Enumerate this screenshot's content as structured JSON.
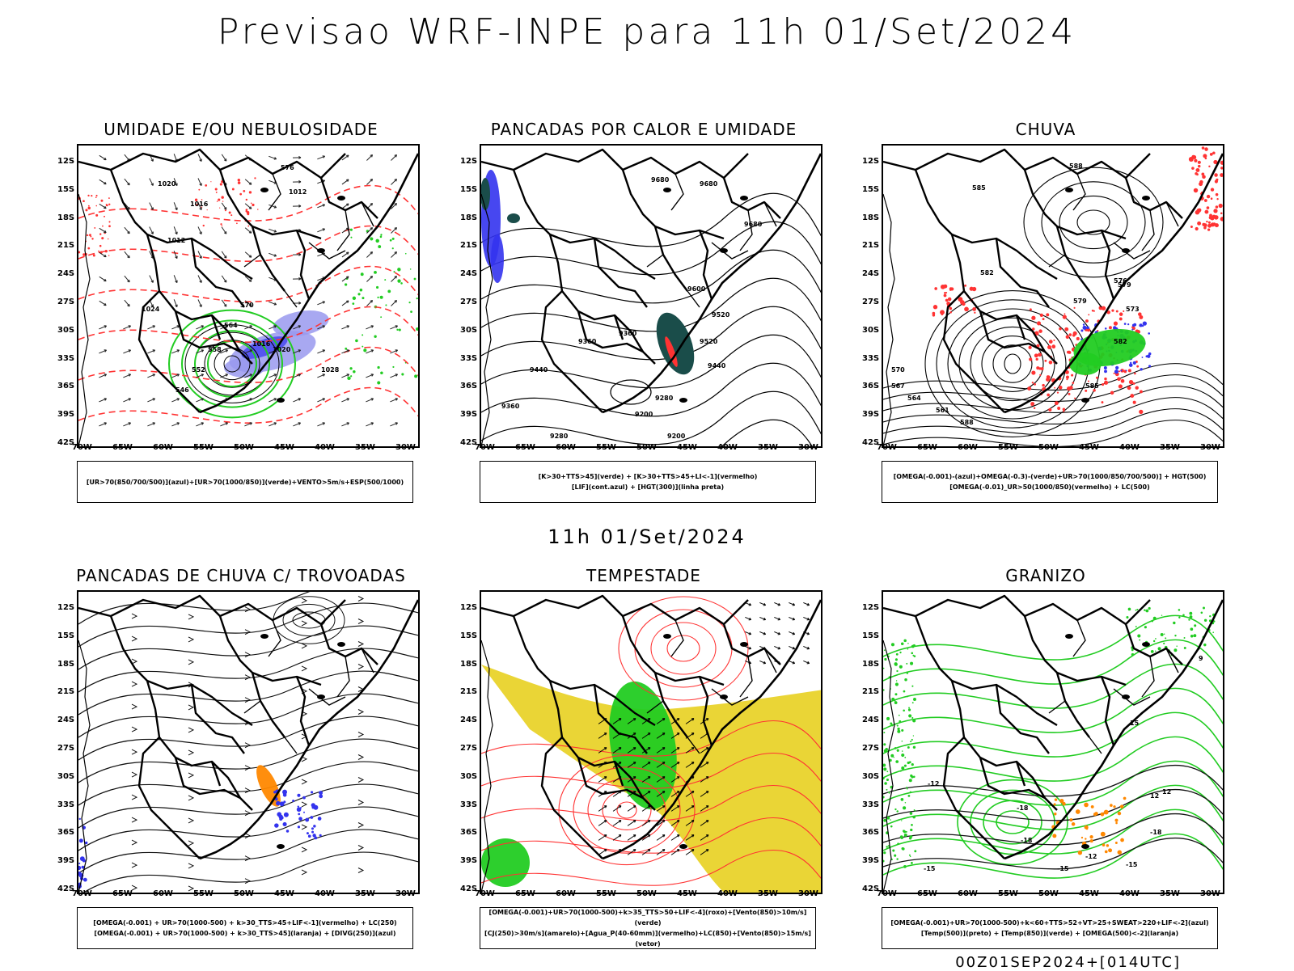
{
  "header": {
    "title": "Previsao WRF-INPE  para 11h 01/Set/2024",
    "mid_time": "11h 01/Set/2024",
    "footer_run": "00Z01SEP2024+[014UTC]"
  },
  "axes": {
    "lat_ticks": [
      "12S",
      "15S",
      "18S",
      "21S",
      "24S",
      "27S",
      "30S",
      "33S",
      "36S",
      "39S",
      "42S"
    ],
    "lon_ticks": [
      "70W",
      "65W",
      "60W",
      "55W",
      "50W",
      "45W",
      "40W",
      "35W",
      "30W"
    ]
  },
  "panels": [
    {
      "id": "umidade",
      "title": "UMIDADE E/OU NEBULOSIDADE",
      "legend": [
        "[UR>70(850/700/500)](azul)+[UR>70(1000/850)](verde)+VENTO>5m/s+ESP(500/1000)"
      ],
      "contour_labels": [
        "1020",
        "1016",
        "1012",
        "1024",
        "1028",
        "1020",
        "1016",
        "1012",
        "576",
        "570",
        "564",
        "558",
        "552",
        "546"
      ]
    },
    {
      "id": "pancadas-calor",
      "title": "PANCADAS POR CALOR E UMIDADE",
      "legend": [
        "[K>30+TTS>45](verde) + [K>30+TTS>45+LI<-1](vermelho)",
        "[LIF](cont.azul) + [HGT(300)](linha preta)"
      ],
      "contour_labels": [
        "9680",
        "9680",
        "9680",
        "9600",
        "9520",
        "9520",
        "9440",
        "9440",
        "9360",
        "9360",
        "9280",
        "9200",
        "9200",
        "9280",
        "9360"
      ]
    },
    {
      "id": "chuva",
      "title": "CHUVA",
      "legend": [
        "[OMEGA(-0.001)-(azul)+OMEGA(-0.3)-(verde)+UR>70(1000/850/700/500)] + HGT(500)",
        "[OMEGA(-0.01)_UR>50(1000/850)(vermelho) + LC(500)"
      ],
      "contour_labels": [
        "588",
        "585",
        "582",
        "579",
        "576",
        "573",
        "570",
        "567",
        "564",
        "561",
        "588",
        "585",
        "582",
        "579"
      ]
    },
    {
      "id": "trovoadas",
      "title": "PANCADAS DE CHUVA C/ TROVOADAS",
      "legend": [
        "[OMEGA(-0.001) + UR>70(1000-500) + k>30_TTS>45+LIF<-1](vermelho) + LC(250)",
        "[OMEGA(-0.001) + UR>70(1000-500) + k>30_TTS>45](laranja) + [DIVG(250)](azul)"
      ],
      "contour_labels": []
    },
    {
      "id": "tempestade",
      "title": "TEMPESTADE",
      "legend": [
        "[OMEGA(-0.001)+UR>70(1000-500)+k>35_TTS>50+LIF<-4](roxo)+[Vento(850)>10m/s](verde)",
        "[CJ(250)>30m/s](amarelo)+[Agua_P(40-60mm)](vermelho)+LC(850)+[Vento(850)>15m/s](vetor)"
      ],
      "contour_labels": []
    },
    {
      "id": "granizo",
      "title": "GRANIZO",
      "legend": [
        "[OMEGA(-0.001)+UR>70(1000-500)+k<60+TTS>52+VT>25+SWEAT>220+LIF<-2](azul)",
        "[Temp(500)](preto) + [Temp(850)](verde) + [OMEGA(500)<-2](laranja)"
      ],
      "contour_labels": [
        "-12",
        "-15",
        "-18",
        "-18",
        "-15",
        "-12",
        "-15",
        "-18",
        "12",
        "9",
        "15",
        "12"
      ]
    }
  ],
  "colors": {
    "blue": "#3333ee",
    "green": "#22cc22",
    "red": "#ff3333",
    "orange": "#ff8800",
    "yellow": "#e8d020",
    "teal": "#1a4d4a",
    "lavender": "#9999ee"
  }
}
